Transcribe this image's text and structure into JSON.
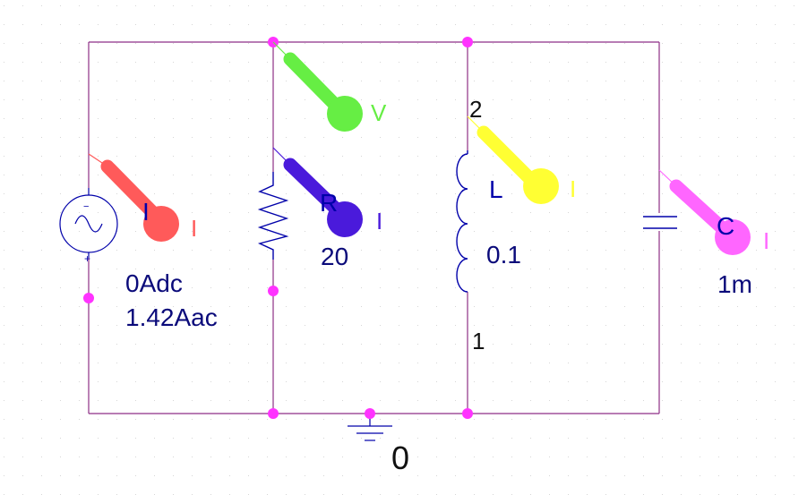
{
  "colors": {
    "wire": "#8e2f86",
    "junction": "#ff33ff",
    "component": "#0000aa",
    "label_dark": "#0a0a7a",
    "black": "#111111",
    "probe_current_red": "#ff5a5a",
    "probe_voltage_green": "#66ee44",
    "probe_current_purple": "#4a1adb",
    "probe_current_yellow": "#ffff33",
    "probe_current_magenta": "#ff66ff",
    "background": "#ffffff"
  },
  "source": {
    "name": "I",
    "dc": "0Adc",
    "ac": "1.42Aac",
    "minus": "−",
    "plus": "+",
    "icon": "ac-current-source-icon"
  },
  "resistor": {
    "name": "R",
    "value": "20",
    "icon": "resistor-zigzag-icon"
  },
  "inductor": {
    "name": "L",
    "value": "0.1",
    "pin_top": "2",
    "pin_bottom": "1",
    "icon": "inductor-coil-icon"
  },
  "capacitor": {
    "name": "C",
    "value": "1m",
    "icon": "capacitor-plates-icon"
  },
  "ground": {
    "label": "0",
    "icon": "ground-symbol-icon"
  },
  "probes": {
    "source_current": {
      "letter": "I",
      "icon": "current-probe-icon"
    },
    "node_voltage": {
      "letter": "V",
      "icon": "voltage-probe-icon"
    },
    "resistor_current": {
      "letter": "I",
      "icon": "current-probe-icon"
    },
    "inductor_current": {
      "letter": "I",
      "icon": "current-probe-icon"
    },
    "capacitor_current": {
      "letter": "I",
      "icon": "current-probe-icon"
    }
  }
}
